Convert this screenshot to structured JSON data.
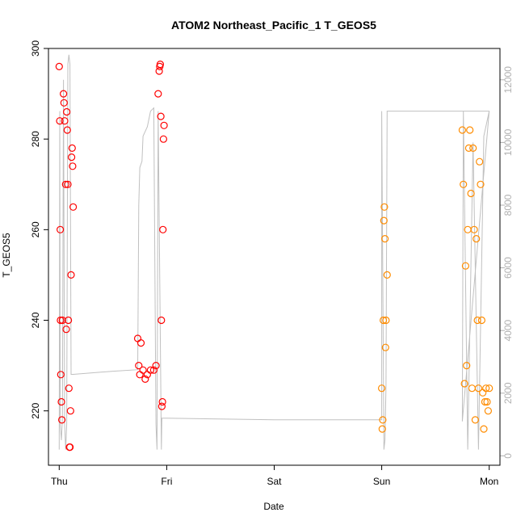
{
  "chart_data": {
    "type": "scatter",
    "title": "ATOM2 Northeast_Pacific_1 T_GEOS5",
    "xlabel": "Date",
    "ylabel": "T_GEOS5",
    "x_ticks": [
      "Thu",
      "Fri",
      "Sat",
      "Sun",
      "Mon"
    ],
    "x_range_days": [
      -0.1,
      4.1
    ],
    "ylim": [
      208,
      300
    ],
    "y_ticks": [
      220,
      240,
      260,
      280,
      300
    ],
    "y2lim": [
      -300,
      13000
    ],
    "y2_ticks": [
      0,
      2000,
      4000,
      6000,
      8000,
      10000,
      12000
    ],
    "grid": false,
    "legend": "none",
    "colors": {
      "series_red": "#ff0000",
      "series_orange": "#ff8c00",
      "altitude_line": "#c0c0c0"
    },
    "series": [
      {
        "color": "#ff0000",
        "marker": "open-circle",
        "points": [
          [
            0.0,
            296
          ],
          [
            0.005,
            284
          ],
          [
            0.01,
            260
          ],
          [
            0.012,
            240
          ],
          [
            0.015,
            228
          ],
          [
            0.02,
            222
          ],
          [
            0.025,
            218
          ],
          [
            0.03,
            240
          ],
          [
            0.04,
            290
          ],
          [
            0.045,
            288
          ],
          [
            0.05,
            284
          ],
          [
            0.06,
            270
          ],
          [
            0.065,
            238
          ],
          [
            0.07,
            286
          ],
          [
            0.075,
            282
          ],
          [
            0.08,
            270
          ],
          [
            0.085,
            240
          ],
          [
            0.09,
            225
          ],
          [
            0.095,
            212
          ],
          [
            0.1,
            212
          ],
          [
            0.105,
            220
          ],
          [
            0.11,
            250
          ],
          [
            0.115,
            276
          ],
          [
            0.12,
            278
          ],
          [
            0.125,
            274
          ],
          [
            0.13,
            265
          ],
          [
            0.73,
            236
          ],
          [
            0.74,
            230
          ],
          [
            0.75,
            228
          ],
          [
            0.76,
            235
          ],
          [
            0.78,
            229
          ],
          [
            0.8,
            227
          ],
          [
            0.82,
            228
          ],
          [
            0.85,
            229
          ],
          [
            0.88,
            229
          ],
          [
            0.9,
            230
          ],
          [
            0.92,
            290
          ],
          [
            0.93,
            295
          ],
          [
            0.935,
            296
          ],
          [
            0.94,
            296.5
          ],
          [
            0.945,
            285
          ],
          [
            0.95,
            240
          ],
          [
            0.955,
            221
          ],
          [
            0.96,
            222
          ],
          [
            0.965,
            260
          ],
          [
            0.97,
            280
          ],
          [
            0.975,
            283
          ]
        ]
      },
      {
        "color": "#ff8c00",
        "marker": "open-circle",
        "points": [
          [
            3.0,
            225
          ],
          [
            3.005,
            216
          ],
          [
            3.01,
            218
          ],
          [
            3.015,
            240
          ],
          [
            3.02,
            262
          ],
          [
            3.025,
            265
          ],
          [
            3.03,
            258
          ],
          [
            3.035,
            234
          ],
          [
            3.04,
            240
          ],
          [
            3.05,
            250
          ],
          [
            3.75,
            282
          ],
          [
            3.76,
            270
          ],
          [
            3.77,
            226
          ],
          [
            3.78,
            252
          ],
          [
            3.79,
            230
          ],
          [
            3.8,
            260
          ],
          [
            3.81,
            278
          ],
          [
            3.82,
            282
          ],
          [
            3.83,
            268
          ],
          [
            3.84,
            225
          ],
          [
            3.85,
            278
          ],
          [
            3.86,
            260
          ],
          [
            3.87,
            218
          ],
          [
            3.88,
            258
          ],
          [
            3.89,
            240
          ],
          [
            3.9,
            225
          ],
          [
            3.91,
            275
          ],
          [
            3.92,
            270
          ],
          [
            3.93,
            240
          ],
          [
            3.94,
            224
          ],
          [
            3.95,
            216
          ],
          [
            3.96,
            222
          ],
          [
            3.97,
            225
          ],
          [
            3.98,
            222
          ],
          [
            3.99,
            220
          ],
          [
            4.0,
            225
          ]
        ]
      }
    ],
    "altitude_line": {
      "color": "#c0c0c0",
      "axis": "right",
      "points": [
        [
          0.0,
          200
        ],
        [
          0.005,
          11000
        ],
        [
          0.01,
          1000
        ],
        [
          0.02,
          500
        ],
        [
          0.03,
          1200
        ],
        [
          0.04,
          12000
        ],
        [
          0.05,
          1000
        ],
        [
          0.06,
          200
        ],
        [
          0.07,
          1000
        ],
        [
          0.08,
          12500
        ],
        [
          0.09,
          12800
        ],
        [
          0.1,
          12500
        ],
        [
          0.11,
          2600
        ],
        [
          0.13,
          2600
        ],
        [
          0.5,
          2700
        ],
        [
          0.73,
          2750
        ],
        [
          0.74,
          8000
        ],
        [
          0.75,
          9200
        ],
        [
          0.77,
          9400
        ],
        [
          0.78,
          10200
        ],
        [
          0.82,
          10500
        ],
        [
          0.85,
          11000
        ],
        [
          0.88,
          11100
        ],
        [
          0.9,
          1000
        ],
        [
          0.91,
          200
        ],
        [
          0.92,
          11000
        ],
        [
          0.95,
          200
        ],
        [
          0.955,
          1200
        ],
        [
          1.0,
          1200
        ],
        [
          2.0,
          1150
        ],
        [
          3.0,
          1150
        ],
        [
          3.0,
          11000
        ],
        [
          3.02,
          200
        ],
        [
          3.03,
          500
        ],
        [
          3.04,
          2200
        ],
        [
          3.05,
          11000
        ],
        [
          3.5,
          11000
        ],
        [
          3.9,
          11000
        ],
        [
          3.95,
          11000
        ],
        [
          4.0,
          11000
        ],
        [
          3.75,
          1100
        ],
        [
          3.76,
          11000
        ],
        [
          3.8,
          200
        ],
        [
          3.85,
          10000
        ],
        [
          3.9,
          200
        ],
        [
          3.95,
          10200
        ],
        [
          4.0,
          11000
        ]
      ]
    }
  }
}
